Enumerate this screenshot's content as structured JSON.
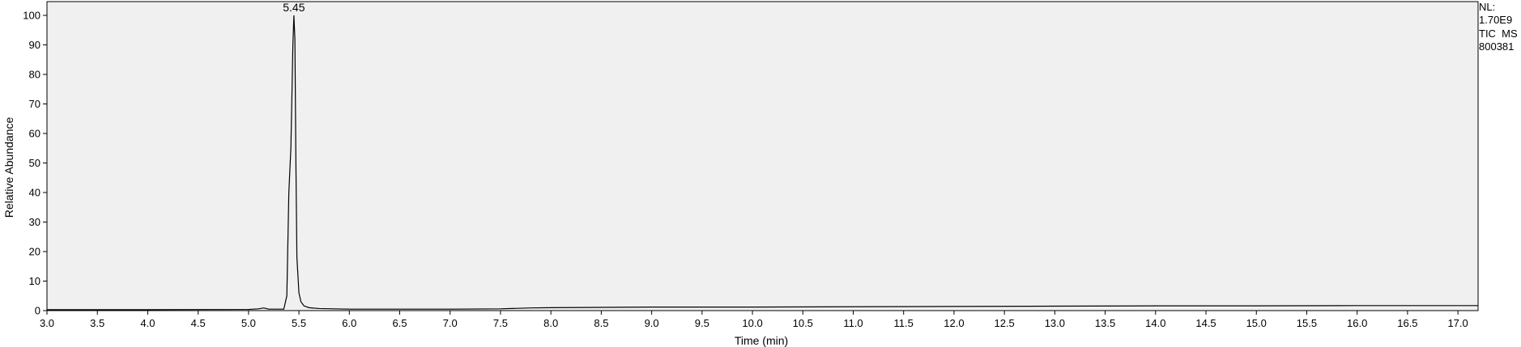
{
  "chart_data": {
    "type": "line",
    "xlabel": "Time (min)",
    "ylabel": "Relative Abundance",
    "xlim": [
      3.0,
      17.2
    ],
    "ylim": [
      0,
      100
    ],
    "x_ticks": [
      "3.0",
      "3.5",
      "4.0",
      "4.5",
      "5.0",
      "5.5",
      "6.0",
      "6.5",
      "7.0",
      "7.5",
      "8.0",
      "8.5",
      "9.0",
      "9.5",
      "10.0",
      "10.5",
      "11.0",
      "11.5",
      "12.0",
      "12.5",
      "13.0",
      "13.5",
      "14.0",
      "14.5",
      "15.0",
      "15.5",
      "16.0",
      "16.5",
      "17.0"
    ],
    "y_ticks": [
      "0",
      "10",
      "20",
      "30",
      "40",
      "50",
      "60",
      "70",
      "80",
      "90",
      "100"
    ],
    "grid": false,
    "peak_annotation": {
      "x": 5.45,
      "y": 100,
      "label": "5.45"
    },
    "series": [
      {
        "x": [
          3.0,
          4.0,
          5.0,
          5.1,
          5.15,
          5.2,
          5.35,
          5.38,
          5.4,
          5.42,
          5.43,
          5.44,
          5.45,
          5.46,
          5.47,
          5.48,
          5.5,
          5.52,
          5.55,
          5.6,
          5.7,
          6.0,
          7.0,
          7.5,
          7.8,
          8.0,
          8.5,
          9.0,
          10.0,
          11.0,
          12.0,
          13.0,
          14.0,
          15.0,
          16.0,
          17.0,
          17.2
        ],
        "y": [
          0.3,
          0.3,
          0.4,
          0.6,
          0.9,
          0.5,
          0.5,
          5,
          40,
          55,
          72,
          90,
          100,
          92,
          50,
          18,
          6,
          3,
          1.6,
          1.0,
          0.7,
          0.5,
          0.5,
          0.6,
          0.9,
          1.0,
          1.1,
          1.2,
          1.2,
          1.3,
          1.4,
          1.5,
          1.6,
          1.6,
          1.7,
          1.7,
          1.7
        ]
      }
    ]
  },
  "side_info": {
    "line1": "NL:",
    "line2": "1.70E9",
    "line3": "TIC  MS",
    "line4": "800381"
  }
}
